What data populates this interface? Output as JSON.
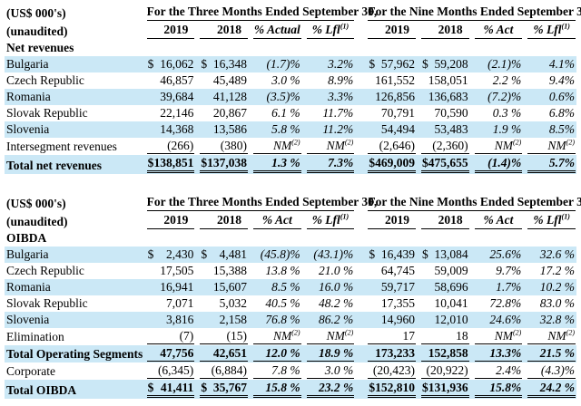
{
  "styles": {
    "stripe_color": "#cbe8f6",
    "text_color": "#000000",
    "background_color": "#ffffff"
  },
  "tables": [
    {
      "unit_label": "(US$ 000's)",
      "unaudited_label": "(unaudited)",
      "group_headers": [
        "For the Three Months Ended September 30,",
        "For the Nine Months Ended September 30,"
      ],
      "column_headers": [
        "2019",
        "2018",
        "% Actual",
        "% Lfl^(1)",
        "2019",
        "2018",
        "% Act",
        "% Lfl^(1)"
      ],
      "section_label": "Net revenues",
      "rows": [
        {
          "label": "Bulgaria",
          "stripe": true,
          "values": [
            "$ 16,062",
            "$ 16,348",
            "(1.7)%",
            "3.2%",
            "$ 57,962",
            "$ 59,208",
            "(2.1)%",
            "4.1%"
          ]
        },
        {
          "label": "Czech Republic",
          "values": [
            "46,857",
            "45,489",
            "3.0 %",
            "8.9%",
            "161,552",
            "158,051",
            "2.2 %",
            "9.4%"
          ]
        },
        {
          "label": "Romania",
          "stripe": true,
          "values": [
            "39,684",
            "41,128",
            "(3.5)%",
            "3.3%",
            "126,856",
            "136,683",
            "(7.2)%",
            "0.6%"
          ]
        },
        {
          "label": "Slovak Republic",
          "values": [
            "22,146",
            "20,867",
            "6.1 %",
            "11.7%",
            "70,791",
            "70,590",
            "0.3 %",
            "6.8%"
          ]
        },
        {
          "label": "Slovenia",
          "stripe": true,
          "values": [
            "14,368",
            "13,586",
            "5.8 %",
            "11.2%",
            "54,494",
            "53,483",
            "1.9 %",
            "8.5%"
          ]
        },
        {
          "label": "Intersegment revenues",
          "underline": true,
          "values": [
            "(266)",
            "(380)",
            "NM^(2)",
            "NM^(2)",
            "(2,646)",
            "(2,360)",
            "NM^(2)",
            "NM^(2)"
          ]
        },
        {
          "label": "Total net revenues",
          "stripe": true,
          "bold": true,
          "total": true,
          "values": [
            "$ 138,851",
            "$ 137,038",
            "1.3 %",
            "7.3%",
            "$ 469,009",
            "$ 475,655",
            "(1.4)%",
            "5.7%"
          ]
        }
      ]
    },
    {
      "unit_label": "(US$ 000's)",
      "unaudited_label": "(unaudited)",
      "group_headers": [
        "For the Three Months Ended September 30,",
        "For the Nine Months Ended September 30,"
      ],
      "column_headers": [
        "2019",
        "2018",
        "% Act",
        "% Lfl^(1)",
        "2019",
        "2018",
        "% Act",
        "% Lfl^(1)"
      ],
      "section_label": "OIBDA",
      "rows": [
        {
          "label": "Bulgaria",
          "stripe": true,
          "values": [
            "$ 2,430",
            "$ 4,481",
            "(45.8)%",
            "(43.1)%",
            "$ 16,439",
            "$ 13,084",
            "25.6%",
            "32.6 %"
          ]
        },
        {
          "label": "Czech Republic",
          "values": [
            "17,505",
            "15,388",
            "13.8 %",
            "21.0 %",
            "64,745",
            "59,009",
            "9.7%",
            "17.2 %"
          ]
        },
        {
          "label": "Romania",
          "stripe": true,
          "values": [
            "16,941",
            "15,607",
            "8.5 %",
            "16.0 %",
            "59,717",
            "58,696",
            "1.7%",
            "10.2 %"
          ]
        },
        {
          "label": "Slovak Republic",
          "values": [
            "7,071",
            "5,032",
            "40.5 %",
            "48.2 %",
            "17,355",
            "10,041",
            "72.8%",
            "83.0 %"
          ]
        },
        {
          "label": "Slovenia",
          "stripe": true,
          "values": [
            "3,816",
            "2,158",
            "76.8 %",
            "86.2 %",
            "14,960",
            "12,010",
            "24.6%",
            "32.8 %"
          ]
        },
        {
          "label": "Elimination",
          "underline": true,
          "values": [
            "(7)",
            "(15)",
            "NM^(2)",
            "NM^(2)",
            "17",
            "18",
            "NM^(2)",
            "NM^(2)"
          ]
        },
        {
          "label": "Total Operating Segments",
          "stripe": true,
          "bold": true,
          "underline": true,
          "values": [
            "47,756",
            "42,651",
            "12.0 %",
            "18.9 %",
            "173,233",
            "152,858",
            "13.3%",
            "21.5 %"
          ]
        },
        {
          "label": "Corporate",
          "underline": true,
          "values": [
            "(6,345)",
            "(6,884)",
            "7.8 %",
            "3.0 %",
            "(20,423)",
            "(20,922)",
            "2.4%",
            "(4.3)%"
          ]
        },
        {
          "label": "Total OIBDA",
          "stripe": true,
          "bold": true,
          "total": true,
          "values": [
            "$ 41,411",
            "$ 35,767",
            "15.8 %",
            "23.2 %",
            "$ 152,810",
            "$ 131,936",
            "15.8%",
            "24.2 %"
          ]
        }
      ]
    }
  ]
}
